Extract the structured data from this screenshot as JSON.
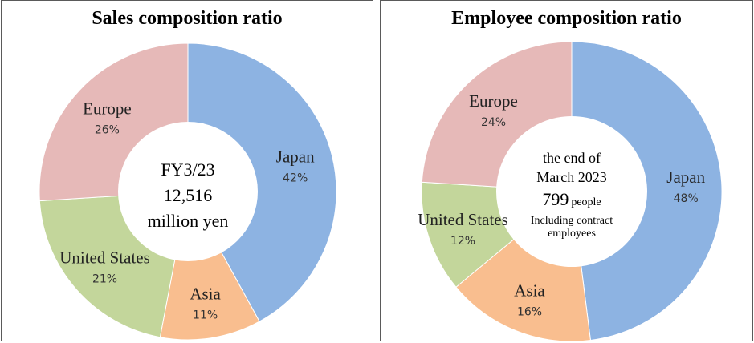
{
  "chart_data": [
    {
      "type": "pie",
      "title": "Sales composition ratio",
      "categories": [
        "Japan",
        "Asia",
        "United States",
        "Europe"
      ],
      "values": [
        42,
        11,
        21,
        26
      ],
      "value_labels": [
        "42%",
        "11%",
        "21%",
        "26%"
      ],
      "colors": [
        "#8db3e2",
        "#f9be8f",
        "#c3d69b",
        "#e6b9b8"
      ],
      "center_text": [
        "FY3/23",
        "12,516",
        "million yen"
      ]
    },
    {
      "type": "pie",
      "title": "Employee composition ratio",
      "categories": [
        "Japan",
        "Asia",
        "United States",
        "Europe"
      ],
      "values": [
        48,
        16,
        12,
        24
      ],
      "value_labels": [
        "48%",
        "16%",
        "12%",
        "24%"
      ],
      "colors": [
        "#8db3e2",
        "#f9be8f",
        "#c3d69b",
        "#e6b9b8"
      ],
      "center_text": [
        "the end of",
        "March 2023",
        "799",
        "people",
        "Including contract",
        "employees"
      ]
    }
  ]
}
